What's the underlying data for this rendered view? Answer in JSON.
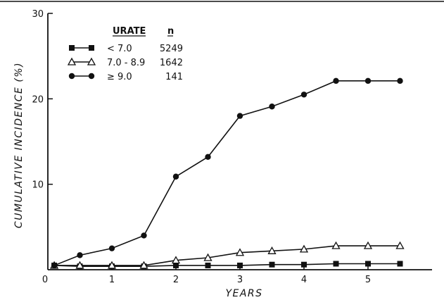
{
  "chart_data": {
    "type": "line",
    "title": "",
    "xlabel": "YEARS",
    "ylabel": "CUMULATIVE INCIDENCE (%)",
    "xlim": [
      0,
      6
    ],
    "ylim": [
      0,
      30
    ],
    "x_ticks": [
      "0",
      "1",
      "2",
      "3",
      "4",
      "5"
    ],
    "y_ticks": [
      "10",
      "20",
      "30"
    ],
    "legend": {
      "placement": "top-left",
      "header_group": "URATE",
      "header_n": "n"
    },
    "series": [
      {
        "name": "< 7.0",
        "n": "5249",
        "marker": "square",
        "x": [
          0.1,
          0.5,
          1.0,
          1.5,
          2.0,
          2.5,
          3.0,
          3.5,
          4.0,
          4.5,
          5.0,
          5.5
        ],
        "y": [
          0.5,
          0.4,
          0.4,
          0.4,
          0.5,
          0.5,
          0.5,
          0.6,
          0.6,
          0.7,
          0.7,
          0.7
        ]
      },
      {
        "name": "7.0 - 8.9",
        "n": "1642",
        "marker": "triangle",
        "x": [
          0.1,
          0.5,
          1.0,
          1.5,
          2.0,
          2.5,
          3.0,
          3.5,
          4.0,
          4.5,
          5.0,
          5.5
        ],
        "y": [
          0.5,
          0.5,
          0.5,
          0.5,
          1.1,
          1.4,
          2.0,
          2.2,
          2.4,
          2.8,
          2.8,
          2.8
        ]
      },
      {
        "name": "≥ 9.0",
        "n": "141",
        "marker": "circle",
        "x": [
          0.1,
          0.5,
          1.0,
          1.5,
          2.0,
          2.5,
          3.0,
          3.5,
          4.0,
          4.5,
          5.0,
          5.5
        ],
        "y": [
          0.5,
          1.7,
          2.5,
          4.0,
          10.9,
          13.2,
          18.0,
          19.1,
          20.5,
          22.1,
          22.1,
          22.1
        ]
      }
    ]
  }
}
